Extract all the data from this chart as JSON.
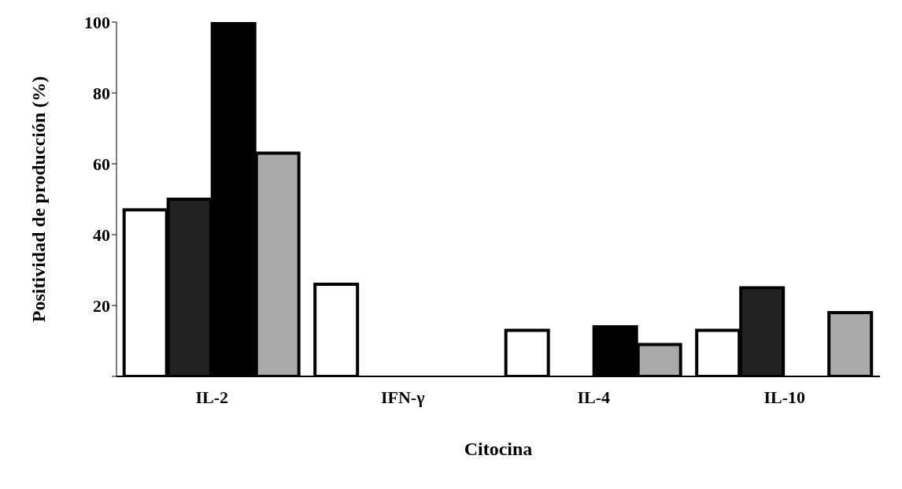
{
  "chart_data": {
    "type": "bar",
    "xlabel": "Citocina",
    "ylabel": "Positividad de producción (%)",
    "categories": [
      "IL-2",
      "IFN-γ",
      "IL-4",
      "IL-10"
    ],
    "series": [
      {
        "color": "#ffffff",
        "values": [
          47,
          26,
          13,
          13
        ]
      },
      {
        "color": "#222222",
        "values": [
          50,
          null,
          null,
          25
        ]
      },
      {
        "color": "#000000",
        "values": [
          100,
          null,
          14,
          null
        ]
      },
      {
        "color": "#aaaaaa",
        "values": [
          63,
          null,
          9,
          18
        ]
      }
    ],
    "ylim": [
      0,
      100
    ],
    "yticks": [
      {
        "value": 0,
        "label": null
      },
      20,
      40,
      60,
      80,
      100
    ],
    "grid": false,
    "legend": false
  }
}
